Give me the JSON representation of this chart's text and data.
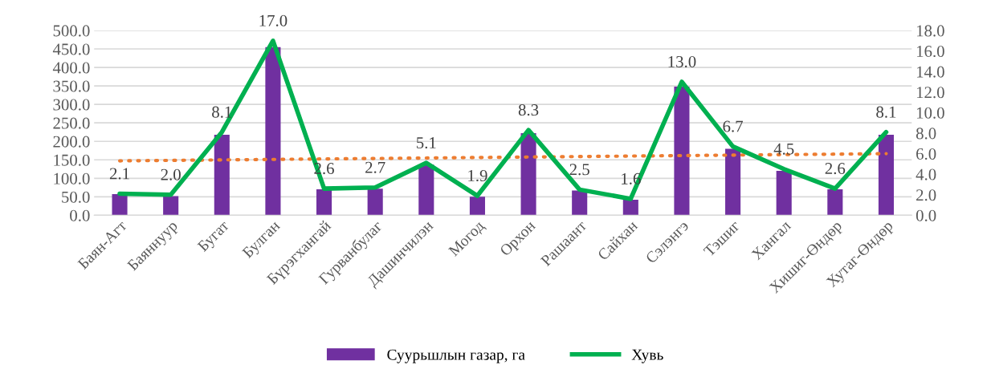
{
  "chart_data": {
    "type": "bar",
    "categories": [
      "Баян-Агт",
      "Баяннуур",
      "Бугат",
      "Булган",
      "Бүрэгхангай",
      "Гурванбулаг",
      "Дашинчилэн",
      "Могод",
      "Орхон",
      "Рашаант",
      "Сайхан",
      "Сэлэнгэ",
      "Тэшиг",
      "Хангал",
      "Хишиг-Өндөр",
      "Хутаг-Өндөр"
    ],
    "series": [
      {
        "name": "Суурьшлын газар, га",
        "color": "#7030a0",
        "values": [
          57,
          52,
          218,
          455,
          70,
          72,
          137,
          50,
          222,
          67,
          42,
          348,
          180,
          120,
          70,
          218
        ]
      },
      {
        "name": "Хувь",
        "type": "line",
        "axis": "y2",
        "color": "#00b050",
        "values": [
          2.1,
          2.0,
          8.1,
          17.0,
          2.6,
          2.7,
          5.1,
          1.9,
          8.3,
          2.5,
          1.6,
          13.0,
          6.7,
          4.5,
          2.6,
          8.1
        ],
        "value_labels": [
          "2.1",
          "2.0",
          "8.1",
          "17.0",
          "2.6",
          "2.7",
          "5.1",
          "1.9",
          "8.3",
          "2.5",
          "1.6",
          "13.0",
          "6.7",
          "4.5",
          "2.6",
          "8.1"
        ]
      },
      {
        "type": "line",
        "axis": "y2",
        "color": "#ed7d31",
        "line_style": "dotted",
        "x": [
          "Баян-Агт",
          "Хутаг-Өндөр"
        ],
        "values": [
          5.3,
          6.0
        ]
      }
    ],
    "ylim": [
      0,
      500
    ],
    "yticks": [
      {
        "value": 0,
        "label": "0.0"
      },
      {
        "value": 50,
        "label": "50.0"
      },
      {
        "value": 100,
        "label": "100.0"
      },
      {
        "value": 150,
        "label": "150.0"
      },
      {
        "value": 200,
        "label": "200.0"
      },
      {
        "value": 250,
        "label": "250.0"
      },
      {
        "value": 300,
        "label": "300.0"
      },
      {
        "value": 350,
        "label": "350.0"
      },
      {
        "value": 400,
        "label": "400.0"
      },
      {
        "value": 450,
        "label": "450.0"
      },
      {
        "value": 500,
        "label": "500.0"
      }
    ],
    "y2lim": [
      0,
      18
    ],
    "y2ticks": [
      {
        "value": 0,
        "label": "0.0"
      },
      {
        "value": 2,
        "label": "2.0"
      },
      {
        "value": 4,
        "label": "4.0"
      },
      {
        "value": 6,
        "label": "6.0"
      },
      {
        "value": 8,
        "label": "8.0"
      },
      {
        "value": 10,
        "label": "10.0"
      },
      {
        "value": 12,
        "label": "12.0"
      },
      {
        "value": 14,
        "label": "14.0"
      },
      {
        "value": 16,
        "label": "16.0"
      },
      {
        "value": 18,
        "label": "18.0"
      }
    ],
    "grid": "y",
    "legend": "bottom"
  }
}
